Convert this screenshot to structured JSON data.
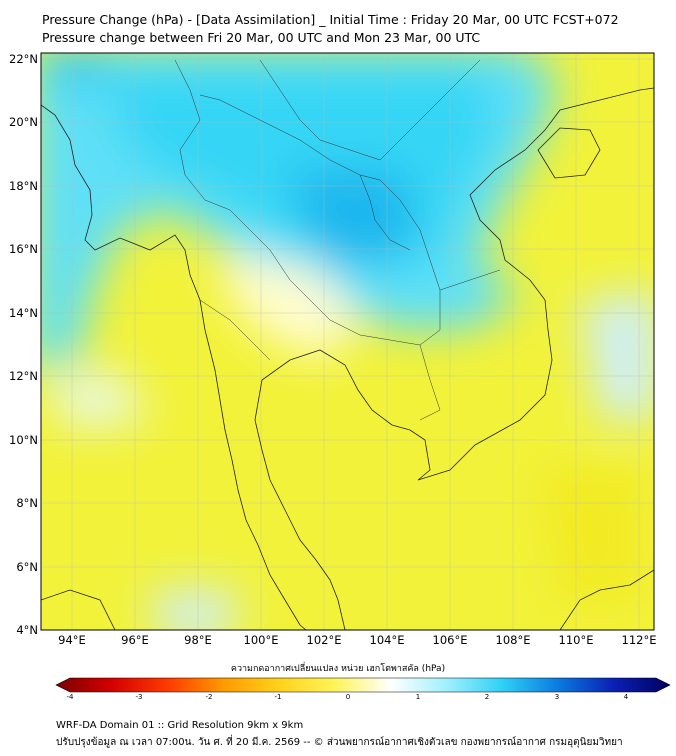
{
  "header": {
    "title_line1": "Pressure Change (hPa) - [Data Assimilation] _ Initial Time : Friday 20 Mar, 00 UTC FCST+072",
    "title_line2": "Pressure change between Fri 20 Mar, 00 UTC and Mon 23 Mar, 00 UTC"
  },
  "map": {
    "lat_labels": [
      "22°N",
      "20°N",
      "18°N",
      "16°N",
      "14°N",
      "12°N",
      "10°N",
      "8°N",
      "6°N",
      "4°N"
    ],
    "lon_labels": [
      "94°E",
      "96°E",
      "98°E",
      "100°E",
      "102°E",
      "104°E",
      "106°E",
      "108°E",
      "110°E",
      "112°E"
    ]
  },
  "colorbar": {
    "title": "ความกดอากาศเปลี่ยนแปลง หน่วย เฮกโตพาสคัล (hPa)",
    "ticks": [
      "-4",
      "-3",
      "-2",
      "-1",
      "0",
      "1",
      "2",
      "3",
      "4"
    ],
    "min": -4,
    "max": 4,
    "colors": [
      "#7a0000",
      "#d40000",
      "#ff3a00",
      "#ff9a00",
      "#ffd21a",
      "#fff45a",
      "#ffffff",
      "#9ff0ff",
      "#2fd0f5",
      "#0a7ae0",
      "#0a1fb4",
      "#000060"
    ]
  },
  "footer": {
    "line1": "WRF-DA Domain 01 :: Grid Resolution 9km x 9km",
    "line2": "ปรับปรุงข้อมูล ณ เวลา 07:00น. วัน ศ. ที่ 20 มี.ค. 2569 -- © ส่วนพยากรณ์อากาศเชิงตัวเลข กองพยากรณ์อากาศ กรมอุตุนิยมวิทยา"
  }
}
